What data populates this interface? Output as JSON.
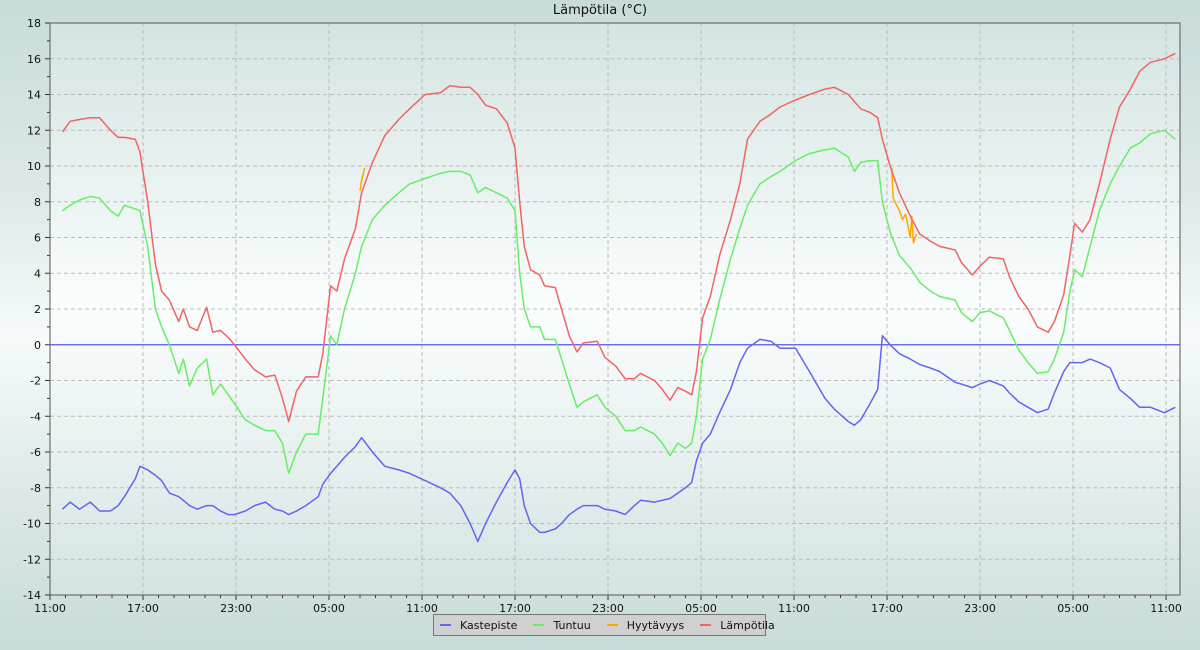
{
  "chart_data": {
    "type": "line",
    "title": "Lämpötila (°C)",
    "xlabel": "",
    "ylabel": "",
    "x_unit": "hours since first 11:00 tick",
    "xlim": [
      0,
      72.9
    ],
    "ylim": [
      -14,
      18
    ],
    "y_ticks": [
      -14,
      -12,
      -10,
      -8,
      -6,
      -4,
      -2,
      0,
      2,
      4,
      6,
      8,
      10,
      12,
      14,
      16,
      18
    ],
    "x_ticks": [
      {
        "x": 0,
        "label": "11:00"
      },
      {
        "x": 6,
        "label": "17:00"
      },
      {
        "x": 12,
        "label": "23:00"
      },
      {
        "x": 18,
        "label": "05:00"
      },
      {
        "x": 24,
        "label": "11:00"
      },
      {
        "x": 30,
        "label": "17:00"
      },
      {
        "x": 36,
        "label": "23:00"
      },
      {
        "x": 42,
        "label": "05:00"
      },
      {
        "x": 48,
        "label": "11:00"
      },
      {
        "x": 54,
        "label": "17:00"
      },
      {
        "x": 60,
        "label": "23:00"
      },
      {
        "x": 66,
        "label": "05:00"
      },
      {
        "x": 72,
        "label": "11:00"
      }
    ],
    "grid": true,
    "zero_line_color": "#5555ee",
    "legend_position": "bottom-center",
    "x": [
      0.8,
      1.3,
      1.9,
      2.6,
      3.2,
      3.9,
      4.4,
      4.8,
      5.5,
      5.8,
      6.3,
      6.8,
      7.2,
      7.7,
      8.3,
      8.6,
      9.0,
      9.5,
      10.1,
      10.5,
      11.0,
      11.5,
      11.9,
      12.6,
      13.2,
      13.9,
      14.5,
      15.0,
      15.4,
      15.9,
      16.5,
      17.3,
      17.6,
      18.1,
      18.5,
      19.0,
      19.7,
      20.1,
      20.8,
      21.6,
      22.5,
      23.2,
      24.2,
      25.2,
      25.8,
      26.5,
      27.1,
      27.6,
      28.1,
      28.8,
      29.5,
      30.0,
      30.3,
      30.6,
      31.0,
      31.6,
      31.9,
      32.6,
      33.0,
      33.5,
      34.0,
      34.4,
      35.3,
      35.8,
      36.5,
      37.1,
      37.7,
      38.1,
      39.0,
      39.5,
      40.0,
      40.5,
      41.0,
      41.4,
      41.7,
      42.1,
      42.6,
      43.2,
      43.9,
      44.5,
      45.0,
      45.8,
      46.5,
      47.1,
      48.1,
      49.0,
      50.0,
      50.6,
      51.5,
      51.9,
      52.3,
      52.9,
      53.4,
      53.7,
      54.2,
      54.8,
      55.5,
      56.1,
      56.8,
      57.4,
      58.4,
      58.8,
      59.5,
      60.0,
      60.6,
      61.5,
      61.9,
      62.5,
      63.1,
      63.7,
      64.4,
      64.8,
      65.4,
      65.8,
      66.1,
      66.6,
      67.1,
      67.7,
      68.4,
      69.0,
      69.7,
      70.3,
      71.0,
      71.9,
      72.6
    ],
    "series": [
      {
        "name": "Kastepiste",
        "color": "#6464f0",
        "values": [
          -9.2,
          -8.8,
          -9.2,
          -8.8,
          -9.3,
          -9.3,
          -9.0,
          -8.5,
          -7.5,
          -6.8,
          -7.0,
          -7.3,
          -7.6,
          -8.3,
          -8.5,
          -8.7,
          -9.0,
          -9.2,
          -9.0,
          -9.0,
          -9.3,
          -9.5,
          -9.5,
          -9.3,
          -9.0,
          -8.8,
          -9.2,
          -9.3,
          -9.5,
          -9.3,
          -9.0,
          -8.5,
          -7.8,
          -7.2,
          -6.8,
          -6.3,
          -5.7,
          -5.2,
          -6.0,
          -6.8,
          -7.0,
          -7.2,
          -7.6,
          -8.0,
          -8.3,
          -9.0,
          -10.0,
          -11.0,
          -10.0,
          -8.8,
          -7.7,
          -7.0,
          -7.5,
          -9.0,
          -10.0,
          -10.5,
          -10.5,
          -10.3,
          -10.0,
          -9.5,
          -9.2,
          -9.0,
          -9.0,
          -9.2,
          -9.3,
          -9.5,
          -9.0,
          -8.7,
          -8.8,
          -8.7,
          -8.6,
          -8.3,
          -8.0,
          -7.7,
          -6.5,
          -5.5,
          -5.0,
          -3.8,
          -2.5,
          -1.0,
          -0.2,
          0.3,
          0.2,
          -0.2,
          -0.2,
          -1.5,
          -3.0,
          -3.6,
          -4.3,
          -4.5,
          -4.2,
          -3.3,
          -2.5,
          0.5,
          0.0,
          -0.5,
          -0.8,
          -1.1,
          -1.3,
          -1.5,
          -2.1,
          -2.2,
          -2.4,
          -2.2,
          -2.0,
          -2.3,
          -2.7,
          -3.2,
          -3.5,
          -3.8,
          -3.6,
          -2.7,
          -1.5,
          -1.0,
          -1.0,
          -1.0,
          -0.8,
          -1.0,
          -1.3,
          -2.5,
          -3.0,
          -3.5,
          -3.5,
          -3.8,
          -3.5
        ]
      },
      {
        "name": "Tuntuu",
        "color": "#66ee66",
        "values": [
          7.5,
          7.8,
          8.1,
          8.3,
          8.2,
          7.5,
          7.2,
          7.8,
          7.6,
          7.5,
          5.5,
          2.0,
          1.0,
          0.0,
          -1.6,
          -0.8,
          -2.3,
          -1.3,
          -0.8,
          -2.8,
          -2.2,
          -2.8,
          -3.3,
          -4.2,
          -4.5,
          -4.8,
          -4.8,
          -5.5,
          -7.2,
          -6.0,
          -5.0,
          -5.0,
          -3.0,
          0.5,
          0.0,
          2.0,
          4.0,
          5.5,
          7.0,
          7.8,
          8.5,
          9.0,
          9.3,
          9.6,
          9.7,
          9.7,
          9.5,
          8.5,
          8.8,
          8.5,
          8.2,
          7.5,
          4.0,
          2.0,
          1.0,
          1.0,
          0.3,
          0.3,
          -0.8,
          -2.2,
          -3.5,
          -3.2,
          -2.8,
          -3.5,
          -4.0,
          -4.8,
          -4.8,
          -4.6,
          -5.0,
          -5.5,
          -6.2,
          -5.5,
          -5.8,
          -5.5,
          -4.0,
          -0.8,
          0.3,
          2.5,
          4.8,
          6.5,
          7.8,
          9.0,
          9.4,
          9.7,
          10.3,
          10.7,
          10.9,
          11.0,
          10.5,
          9.7,
          10.2,
          10.3,
          10.3,
          8.0,
          6.3,
          5.0,
          4.3,
          3.5,
          3.0,
          2.7,
          2.5,
          1.8,
          1.3,
          1.8,
          1.9,
          1.5,
          0.8,
          -0.3,
          -1.0,
          -1.6,
          -1.5,
          -0.8,
          0.7,
          3.0,
          4.2,
          3.8,
          5.5,
          7.5,
          9.0,
          10.0,
          11.0,
          11.3,
          11.8,
          12.0,
          11.5
        ]
      },
      {
        "name": "Hyytävyys",
        "color": "#ffa500",
        "points": [
          [
            20.0,
            8.6
          ],
          [
            20.1,
            9.2
          ],
          [
            20.3,
            9.9
          ],
          null,
          [
            54.3,
            9.9
          ],
          [
            54.4,
            8.2
          ],
          [
            54.8,
            7.5
          ],
          [
            55.0,
            7.0
          ],
          [
            55.2,
            7.3
          ],
          [
            55.5,
            6.0
          ],
          [
            55.6,
            7.2
          ],
          [
            55.7,
            5.7
          ],
          [
            55.9,
            6.2
          ]
        ]
      },
      {
        "name": "Lämpötila",
        "color": "#f06464",
        "values": [
          11.9,
          12.5,
          12.6,
          12.7,
          12.7,
          12.0,
          11.6,
          11.6,
          11.5,
          10.8,
          8.0,
          4.5,
          3.0,
          2.5,
          1.3,
          2.0,
          1.0,
          0.8,
          2.1,
          0.7,
          0.8,
          0.4,
          0.0,
          -0.8,
          -1.4,
          -1.8,
          -1.7,
          -3.0,
          -4.3,
          -2.6,
          -1.8,
          -1.8,
          -0.5,
          3.3,
          3.0,
          4.8,
          6.5,
          8.5,
          10.2,
          11.7,
          12.6,
          13.2,
          14.0,
          14.1,
          14.5,
          14.4,
          14.4,
          14.0,
          13.4,
          13.2,
          12.4,
          11.0,
          8.0,
          5.5,
          4.2,
          3.9,
          3.3,
          3.2,
          2.0,
          0.5,
          -0.4,
          0.1,
          0.2,
          -0.7,
          -1.2,
          -1.9,
          -1.9,
          -1.6,
          -2.0,
          -2.5,
          -3.1,
          -2.4,
          -2.6,
          -2.8,
          -1.5,
          1.5,
          2.7,
          5.0,
          7.0,
          9.0,
          11.5,
          12.5,
          12.9,
          13.3,
          13.7,
          14.0,
          14.3,
          14.4,
          14.0,
          13.6,
          13.2,
          13.0,
          12.7,
          11.5,
          10.0,
          8.5,
          7.2,
          6.2,
          5.8,
          5.5,
          5.3,
          4.6,
          3.9,
          4.4,
          4.9,
          4.8,
          3.8,
          2.7,
          2.0,
          1.0,
          0.7,
          1.3,
          2.8,
          5.0,
          6.8,
          6.3,
          7.0,
          9.0,
          11.5,
          13.3,
          14.3,
          15.3,
          15.8,
          16.0,
          16.3
        ]
      }
    ]
  }
}
